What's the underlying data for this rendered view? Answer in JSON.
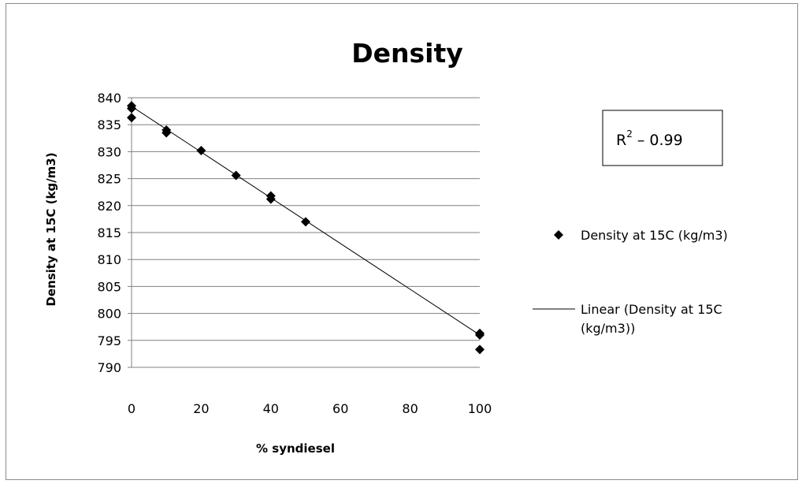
{
  "chart_data": {
    "type": "scatter",
    "title": "Density",
    "xlabel": "% syndiesel",
    "ylabel": "Density at 15C (kg/m3)",
    "xlim": [
      0,
      100
    ],
    "ylim": [
      790,
      840
    ],
    "x_ticks": [
      "0",
      "20",
      "40",
      "60",
      "80",
      "100"
    ],
    "y_ticks": [
      "790",
      "795",
      "800",
      "805",
      "810",
      "815",
      "820",
      "825",
      "830",
      "835",
      "840"
    ],
    "grid": "horizontal",
    "legend_position": "right",
    "series": [
      {
        "name": "Density at 15C (kg/m3)",
        "marker": "diamond",
        "color": "#000000",
        "points": [
          {
            "x": 0,
            "y": 838.5
          },
          {
            "x": 0,
            "y": 838
          },
          {
            "x": 0,
            "y": 836.3
          },
          {
            "x": 10,
            "y": 834
          },
          {
            "x": 10,
            "y": 833.5
          },
          {
            "x": 20,
            "y": 830.2
          },
          {
            "x": 30,
            "y": 825.6
          },
          {
            "x": 40,
            "y": 821.8
          },
          {
            "x": 40,
            "y": 821.2
          },
          {
            "x": 50,
            "y": 817
          },
          {
            "x": 100,
            "y": 796.3
          },
          {
            "x": 100,
            "y": 796
          },
          {
            "x": 100,
            "y": 793.3
          }
        ]
      }
    ],
    "trendline": {
      "name": "Linear (Density at 15C (kg/m3))",
      "color": "#000000",
      "x": [
        0,
        100
      ],
      "y": [
        838.4,
        796
      ]
    },
    "annotation": {
      "r2_base": "R",
      "r2_sup": "2",
      "r2_rest": " – 0.99"
    }
  }
}
